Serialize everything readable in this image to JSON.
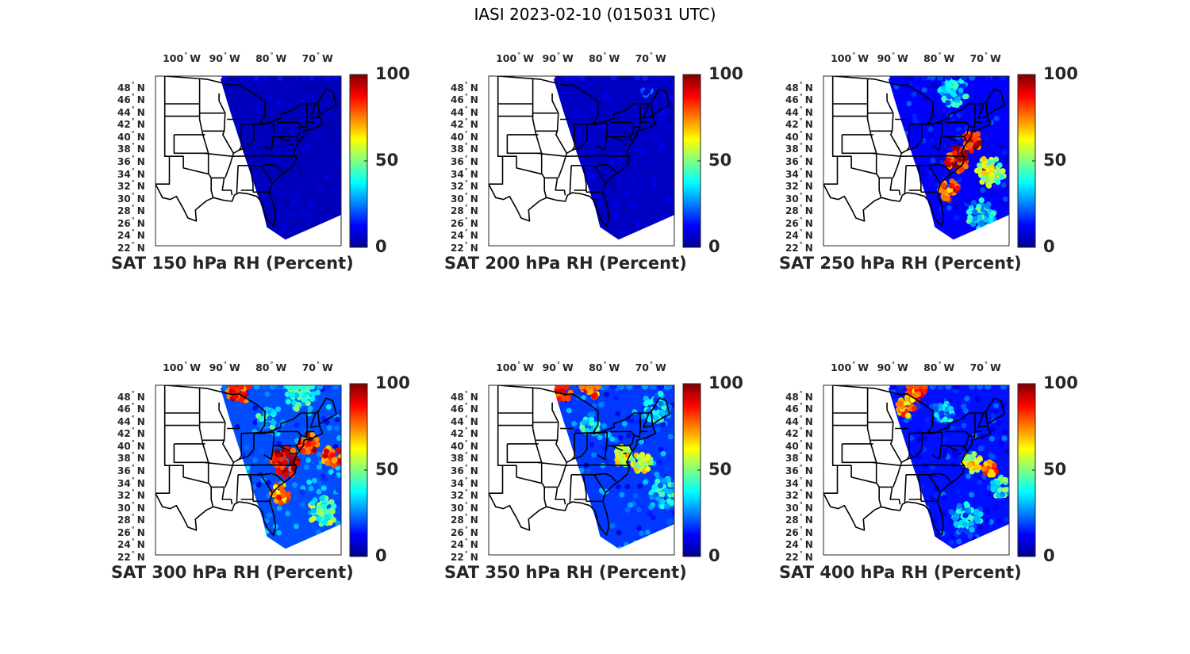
{
  "figure_title": "IASI 2023-02-10 (015031 UTC)",
  "colormap": [
    "#00008f",
    "#0000ff",
    "#0080ff",
    "#00ffff",
    "#80ff80",
    "#ffff00",
    "#ff8000",
    "#ff0000",
    "#800000"
  ],
  "land_color": "#ffffff",
  "border_color": "#000000",
  "lon_ticks": [
    {
      "lon": -100,
      "value": "100",
      "hemisphere": "W"
    },
    {
      "lon": -90,
      "value": "90",
      "hemisphere": "W"
    },
    {
      "lon": -80,
      "value": "80",
      "hemisphere": "W"
    },
    {
      "lon": -70,
      "value": "70",
      "hemisphere": "W"
    }
  ],
  "lat_ticks": [
    {
      "lat": 48,
      "value": "48",
      "hemisphere": "N"
    },
    {
      "lat": 46,
      "value": "46",
      "hemisphere": "N"
    },
    {
      "lat": 44,
      "value": "44",
      "hemisphere": "N"
    },
    {
      "lat": 42,
      "value": "42",
      "hemisphere": "N"
    },
    {
      "lat": 40,
      "value": "40",
      "hemisphere": "N"
    },
    {
      "lat": 38,
      "value": "38",
      "hemisphere": "N"
    },
    {
      "lat": 36,
      "value": "36",
      "hemisphere": "N"
    },
    {
      "lat": 34,
      "value": "34",
      "hemisphere": "N"
    },
    {
      "lat": 32,
      "value": "32",
      "hemisphere": "N"
    },
    {
      "lat": 30,
      "value": "30",
      "hemisphere": "N"
    },
    {
      "lat": 28,
      "value": "28",
      "hemisphere": "N"
    },
    {
      "lat": 26,
      "value": "26",
      "hemisphere": "N"
    },
    {
      "lat": 24,
      "value": "24",
      "hemisphere": "N"
    },
    {
      "lat": 22,
      "value": "22",
      "hemisphere": "N"
    }
  ],
  "colorbar": {
    "min": 0,
    "max": 100,
    "tick_labels": [
      "100",
      "50",
      "0"
    ],
    "tick_values": [
      100,
      50,
      0
    ]
  },
  "map_extent": {
    "lon_min": -106,
    "lon_max": -66,
    "lat_min": 22,
    "lat_max": 49.5
  },
  "swath_polygon": [
    [
      -91,
      49.5
    ],
    [
      -66,
      49.5
    ],
    [
      -66,
      27
    ],
    [
      -78,
      23
    ],
    [
      -82,
      25
    ],
    [
      -83,
      28
    ],
    [
      -87,
      37
    ],
    [
      -90,
      44
    ],
    [
      -92,
      49
    ]
  ],
  "chart_data": [
    {
      "type": "map",
      "title": "SAT 150 hPa RH (Percent)",
      "pressure_hPa": 150,
      "typical_rh": 5,
      "features": []
    },
    {
      "type": "map",
      "title": "SAT 200 hPa RH (Percent)",
      "pressure_hPa": 200,
      "typical_rh": 6,
      "features": [
        {
          "lon": -72,
          "lat": 47,
          "rh": 15,
          "radius_deg": 1
        }
      ]
    },
    {
      "type": "map",
      "title": "SAT 250 hPa RH (Percent)",
      "pressure_hPa": 250,
      "typical_rh": 12,
      "features": [
        {
          "lon": -77,
          "lat": 36,
          "rh": 90,
          "radius_deg": 2.5
        },
        {
          "lon": -74,
          "lat": 39,
          "rh": 85,
          "radius_deg": 2
        },
        {
          "lon": -79,
          "lat": 31,
          "rh": 80,
          "radius_deg": 2
        },
        {
          "lon": -70,
          "lat": 34,
          "rh": 55,
          "radius_deg": 3
        },
        {
          "lon": -72,
          "lat": 27,
          "rh": 35,
          "radius_deg": 3
        },
        {
          "lon": -78,
          "lat": 47,
          "rh": 30,
          "radius_deg": 3
        }
      ]
    },
    {
      "type": "map",
      "title": "SAT 300 hPa RH (Percent)",
      "pressure_hPa": 300,
      "typical_rh": 20,
      "features": [
        {
          "lon": -88,
          "lat": 48.5,
          "rh": 85,
          "radius_deg": 2.5
        },
        {
          "lon": -78,
          "lat": 37,
          "rh": 90,
          "radius_deg": 3
        },
        {
          "lon": -73,
          "lat": 40,
          "rh": 85,
          "radius_deg": 2
        },
        {
          "lon": -68,
          "lat": 38,
          "rh": 80,
          "radius_deg": 2
        },
        {
          "lon": -79,
          "lat": 32,
          "rh": 75,
          "radius_deg": 2
        },
        {
          "lon": -75,
          "lat": 48,
          "rh": 40,
          "radius_deg": 3
        },
        {
          "lon": -70,
          "lat": 29,
          "rh": 45,
          "radius_deg": 3
        },
        {
          "lon": -82,
          "lat": 44,
          "rh": 35,
          "radius_deg": 2
        }
      ]
    },
    {
      "type": "map",
      "title": "SAT 350 hPa RH (Percent)",
      "pressure_hPa": 350,
      "typical_rh": 18,
      "features": [
        {
          "lon": -90,
          "lat": 48.5,
          "rh": 85,
          "radius_deg": 2
        },
        {
          "lon": -84,
          "lat": 49,
          "rh": 75,
          "radius_deg": 2
        },
        {
          "lon": -77,
          "lat": 38,
          "rh": 60,
          "radius_deg": 2
        },
        {
          "lon": -73,
          "lat": 37,
          "rh": 55,
          "radius_deg": 2
        },
        {
          "lon": -70,
          "lat": 46,
          "rh": 30,
          "radius_deg": 3
        },
        {
          "lon": -68,
          "lat": 32,
          "rh": 35,
          "radius_deg": 3
        },
        {
          "lon": -84,
          "lat": 43,
          "rh": 35,
          "radius_deg": 2
        }
      ]
    },
    {
      "type": "map",
      "title": "SAT 400 hPa RH (Percent)",
      "pressure_hPa": 400,
      "typical_rh": 14,
      "features": [
        {
          "lon": -86,
          "lat": 48.5,
          "rh": 80,
          "radius_deg": 2
        },
        {
          "lon": -88,
          "lat": 46,
          "rh": 70,
          "radius_deg": 2
        },
        {
          "lon": -74,
          "lat": 37,
          "rh": 60,
          "radius_deg": 2
        },
        {
          "lon": -70,
          "lat": 36,
          "rh": 75,
          "radius_deg": 1.5
        },
        {
          "lon": -68,
          "lat": 33,
          "rh": 40,
          "radius_deg": 2
        },
        {
          "lon": -75,
          "lat": 28,
          "rh": 30,
          "radius_deg": 3
        },
        {
          "lon": -80,
          "lat": 45,
          "rh": 30,
          "radius_deg": 2
        }
      ]
    }
  ]
}
